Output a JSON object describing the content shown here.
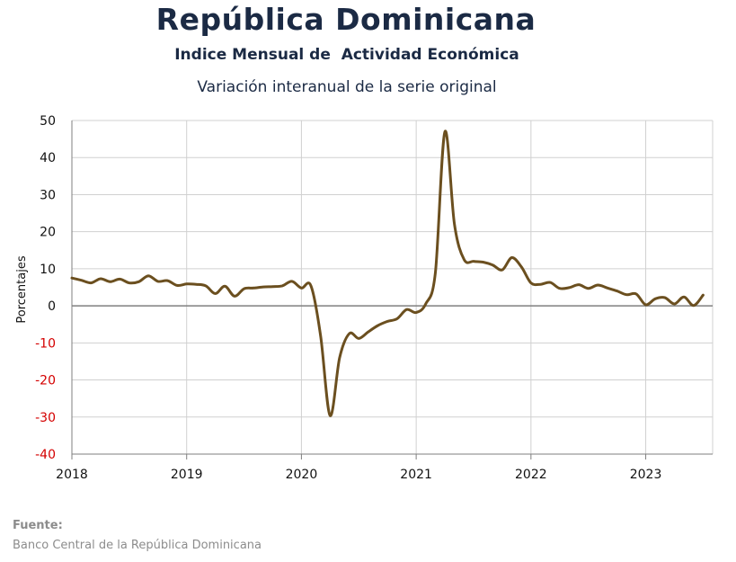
{
  "header": {
    "title": "República Dominicana",
    "subtitle": "Indice Mensual de  Actividad Económica",
    "subtitle2": "Variación interanual de la serie original"
  },
  "footer": {
    "source_label": "Fuente:",
    "source_text": "Banco Central de la República Dominicana"
  },
  "colors": {
    "line": "#6b4f1f",
    "grid": "#d0d0d0",
    "zero_line": "#7f7f7f",
    "axis_text": "#111111",
    "negative_tick": "#d40000",
    "title": "#1b2a44"
  },
  "chart_data": {
    "type": "line",
    "title": "República Dominicana",
    "ylabel": "Porcentajes",
    "xlabel": "",
    "ylim": [
      -40,
      50
    ],
    "yticks": [
      50,
      40,
      30,
      20,
      10,
      0,
      -10,
      -20,
      -30,
      -40
    ],
    "xlim": [
      2018.0,
      2023.583
    ],
    "xticks": [
      2018,
      2019,
      2020,
      2021,
      2022,
      2023
    ],
    "grid": true,
    "series": [
      {
        "name": "",
        "x": [
          2018.0,
          2018.083,
          2018.167,
          2018.25,
          2018.333,
          2018.417,
          2018.5,
          2018.583,
          2018.667,
          2018.75,
          2018.833,
          2018.917,
          2019.0,
          2019.083,
          2019.167,
          2019.25,
          2019.333,
          2019.417,
          2019.5,
          2019.583,
          2019.667,
          2019.75,
          2019.833,
          2019.917,
          2020.0,
          2020.083,
          2020.167,
          2020.25,
          2020.333,
          2020.417,
          2020.5,
          2020.583,
          2020.667,
          2020.75,
          2020.833,
          2020.917,
          2021.0,
          2021.083,
          2021.167,
          2021.25,
          2021.333,
          2021.417,
          2021.5,
          2021.583,
          2021.667,
          2021.75,
          2021.833,
          2021.917,
          2022.0,
          2022.083,
          2022.167,
          2022.25,
          2022.333,
          2022.417,
          2022.5,
          2022.583,
          2022.667,
          2022.75,
          2022.833,
          2022.917,
          2023.0,
          2023.083,
          2023.167,
          2023.25,
          2023.333,
          2023.417,
          2023.5
        ],
        "y": [
          7.5,
          6.9,
          6.2,
          7.3,
          6.5,
          7.2,
          6.2,
          6.5,
          8.1,
          6.6,
          6.8,
          5.5,
          5.9,
          5.8,
          5.4,
          3.3,
          5.3,
          2.6,
          4.6,
          4.8,
          5.1,
          5.2,
          5.4,
          6.6,
          4.8,
          5.4,
          -8.0,
          -29.6,
          -14.0,
          -7.5,
          -8.8,
          -7.0,
          -5.3,
          -4.2,
          -3.5,
          -1.0,
          -1.8,
          0.5,
          9.0,
          47.0,
          22.0,
          12.5,
          12.0,
          11.8,
          11.0,
          9.7,
          13.0,
          10.5,
          6.2,
          5.8,
          6.3,
          4.7,
          4.9,
          5.7,
          4.7,
          5.6,
          4.8,
          4.0,
          3.0,
          3.2,
          0.3,
          1.9,
          2.2,
          0.5,
          2.4,
          0.1,
          2.9
        ]
      }
    ]
  }
}
